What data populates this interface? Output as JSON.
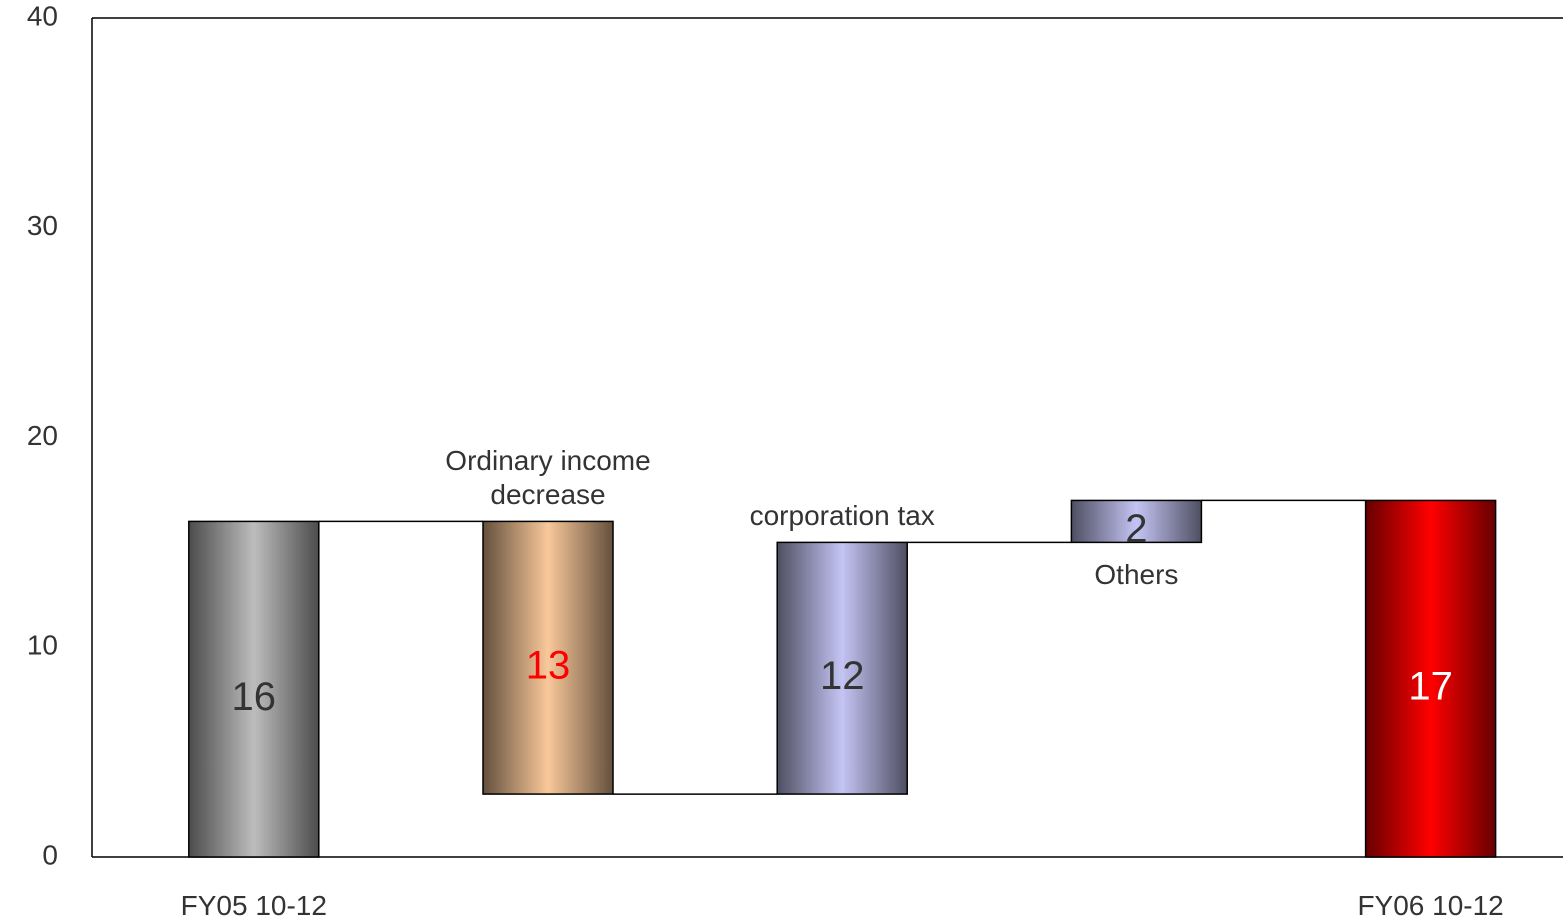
{
  "chart_data": {
    "type": "waterfall",
    "categories": [
      "FY05 10-12",
      "Ordinary income decrease",
      "corporation tax",
      "Others",
      "FY06 10-12"
    ],
    "measure": [
      "absolute",
      "relative",
      "relative",
      "relative",
      "total"
    ],
    "values": [
      16,
      -13,
      12,
      2,
      17
    ],
    "value_labels": [
      "16",
      "13",
      "12",
      "2",
      "17"
    ],
    "colors": [
      "#bdbdbd",
      "#f9c89a",
      "#c4c4f4",
      "#c4c4f4",
      "#ff0000"
    ],
    "label_colors": [
      "#333333",
      "#ff0000",
      "#333333",
      "#333333",
      "#ffffff"
    ],
    "ylim": [
      0,
      40
    ],
    "yticks": [
      0,
      10,
      20,
      30,
      40
    ],
    "grid": false
  }
}
